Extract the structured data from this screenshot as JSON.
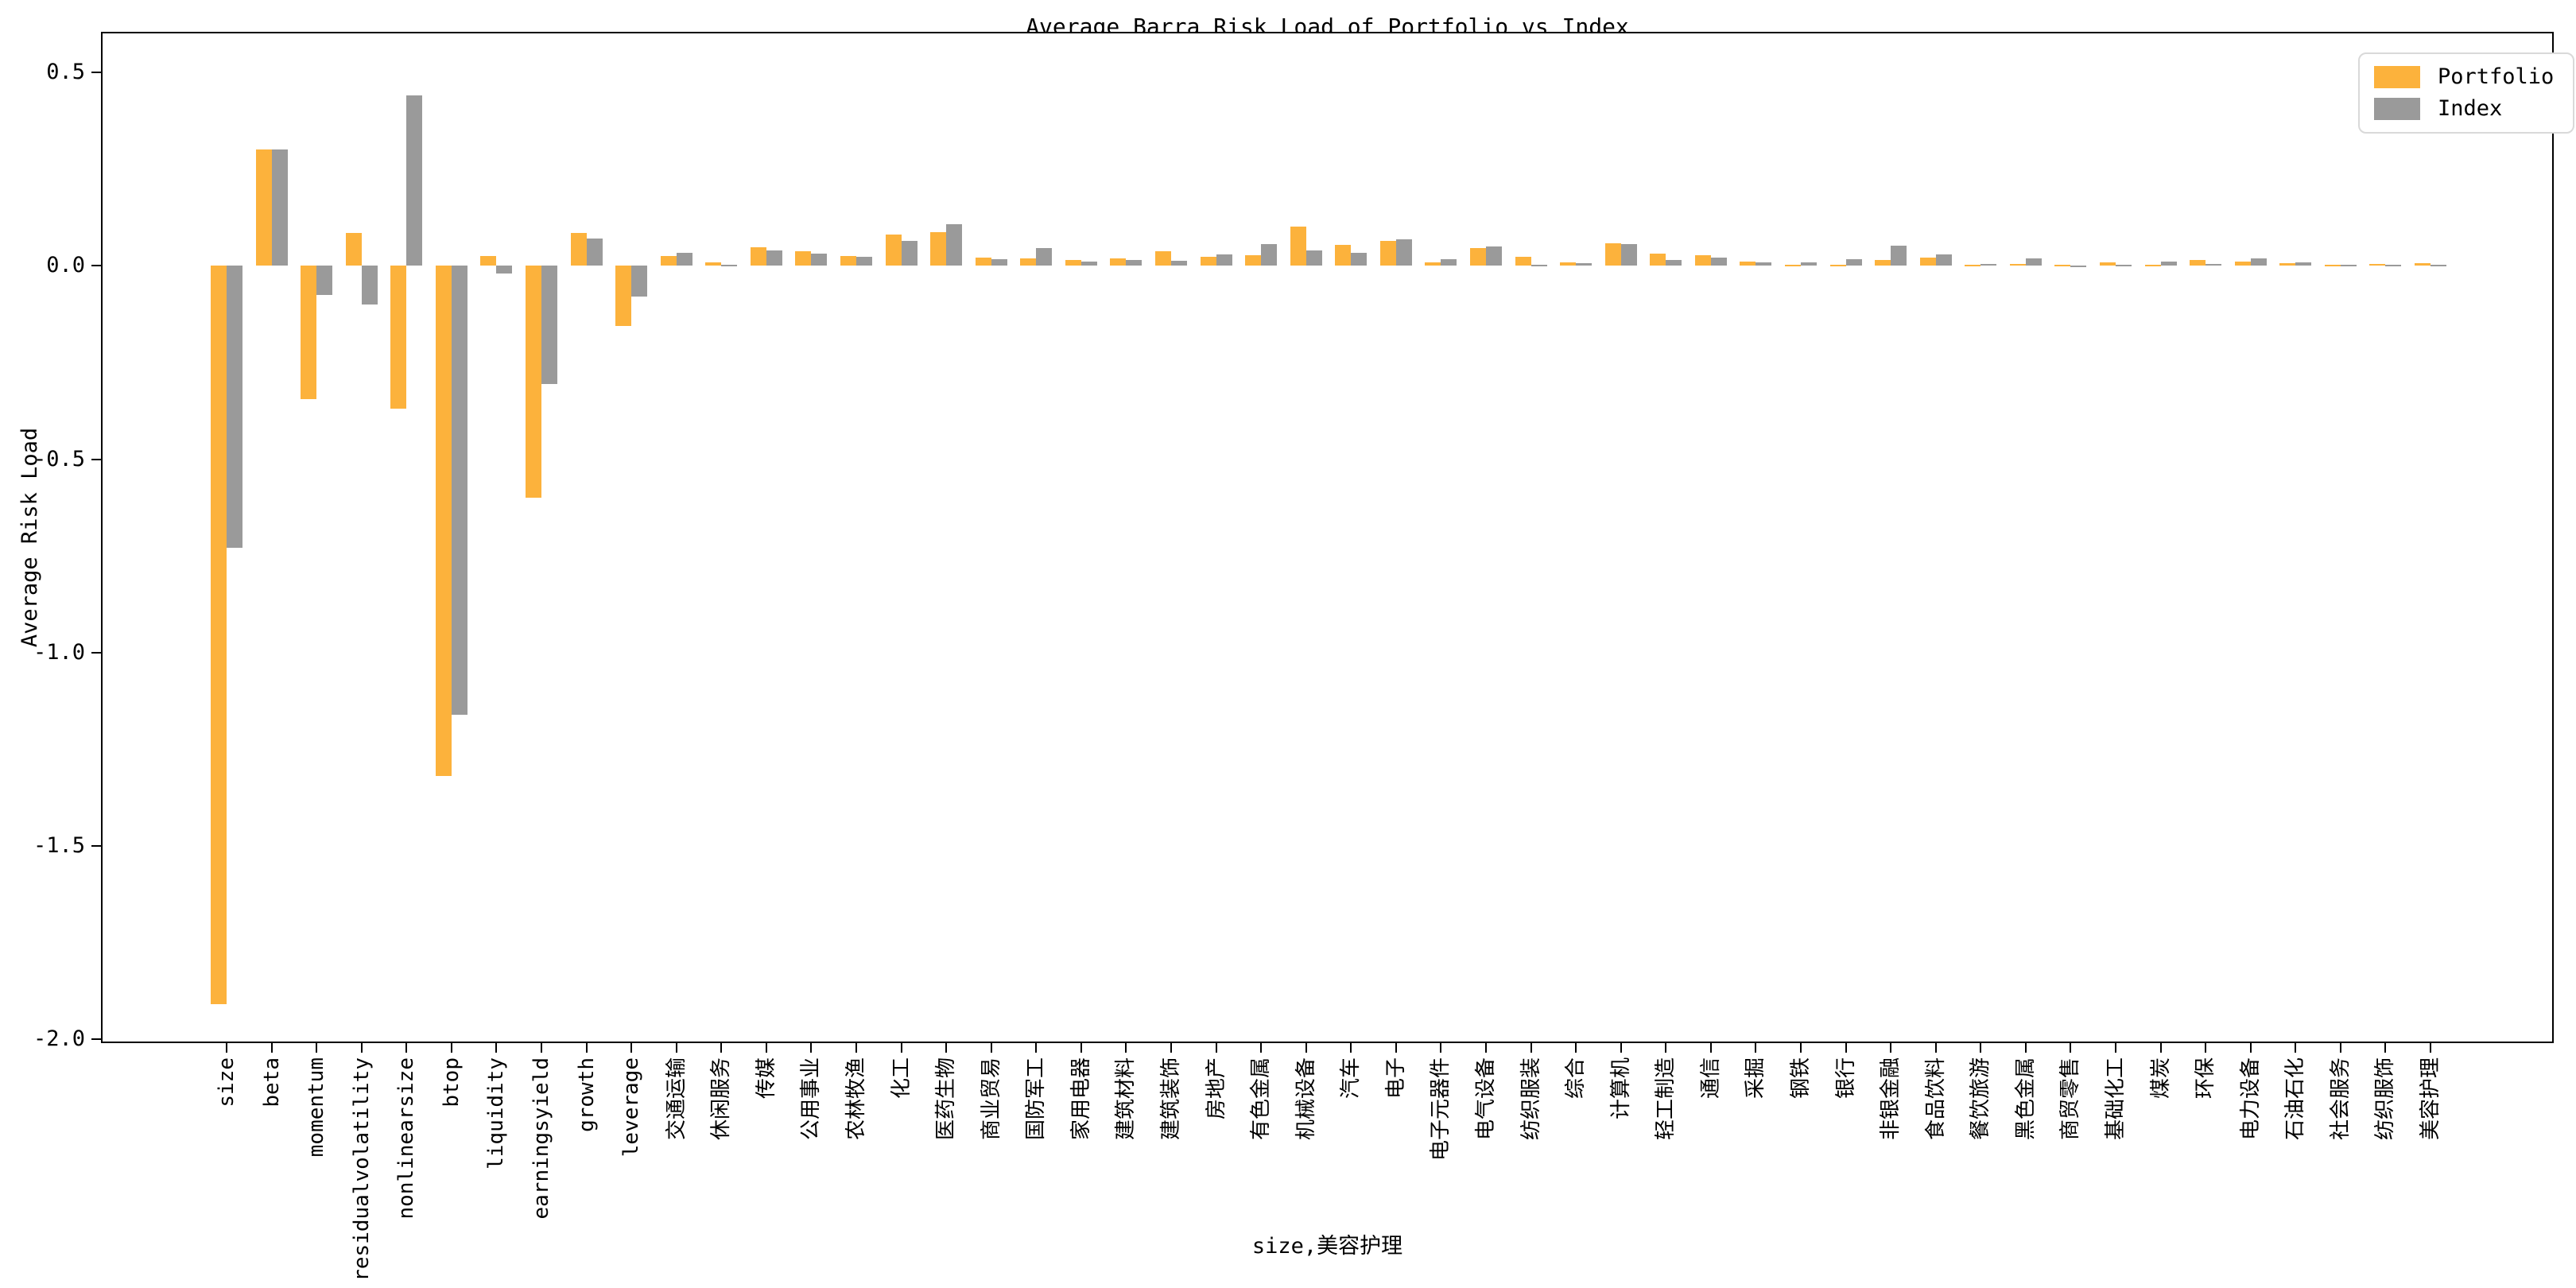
{
  "title": "Average Barra Risk Load of Portfolio vs Index",
  "xlabel": "size,美容护理",
  "ylabel": "Average Risk Load",
  "legend": {
    "items": [
      {
        "label": "Portfolio",
        "color": "#FCB23C"
      },
      {
        "label": "Index",
        "color": "#9A9A9A"
      }
    ]
  },
  "chart_data": {
    "type": "bar",
    "title": "Average Barra Risk Load of Portfolio vs Index",
    "xlabel": "size,美容护理",
    "ylabel": "Average Risk Load",
    "ylim": [
      -2.03,
      0.61
    ],
    "yticks": [
      0.5,
      0.0,
      -0.5,
      -1.0,
      -1.5,
      -2.0
    ],
    "grid": false,
    "legend_position": "upper right",
    "categories": [
      "size",
      "beta",
      "momentum",
      "residualvolatility",
      "nonlinearsize",
      "btop",
      "liquidity",
      "earningsyield",
      "growth",
      "leverage",
      "交通运输",
      "休闲服务",
      "传媒",
      "公用事业",
      "农林牧渔",
      "化工",
      "医药生物",
      "商业贸易",
      "国防军工",
      "家用电器",
      "建筑材料",
      "建筑装饰",
      "房地产",
      "有色金属",
      "机械设备",
      "汽车",
      "电子",
      "电子元器件",
      "电气设备",
      "纺织服装",
      "综合",
      "计算机",
      "轻工制造",
      "通信",
      "采掘",
      "钢铁",
      "银行",
      "非银金融",
      "食品饮料",
      "餐饮旅游",
      "黑色金属",
      "商贸零售",
      "基础化工",
      "煤炭",
      "环保",
      "电力设备",
      "石油石化",
      "社会服务",
      "纺织服饰",
      "美容护理"
    ],
    "series": [
      {
        "name": "Portfolio",
        "color": "#FCB23C",
        "values": [
          -1.91,
          0.3,
          -0.345,
          0.085,
          -0.37,
          -1.32,
          0.025,
          -0.6,
          0.085,
          -0.155,
          0.026,
          0.008,
          0.047,
          0.038,
          0.026,
          0.081,
          0.086,
          0.021,
          0.02,
          0.016,
          0.019,
          0.038,
          0.023,
          0.028,
          0.102,
          0.054,
          0.064,
          0.008,
          0.045,
          0.024,
          0.009,
          0.058,
          0.031,
          0.027,
          0.01,
          0.003,
          0.003,
          0.015,
          0.021,
          0.002,
          0.004,
          0.003,
          0.008,
          0.003,
          0.016,
          0.011,
          0.007,
          0.003,
          0.004,
          0.006
        ]
      },
      {
        "name": "Index",
        "color": "#9A9A9A",
        "values": [
          -0.73,
          0.3,
          -0.075,
          -0.1,
          0.44,
          -1.16,
          -0.02,
          -0.305,
          0.07,
          -0.08,
          0.033,
          0.003,
          0.04,
          0.032,
          0.024,
          0.065,
          0.108,
          0.017,
          0.045,
          0.01,
          0.016,
          0.012,
          0.029,
          0.056,
          0.04,
          0.033,
          0.069,
          0.017,
          0.05,
          0.003,
          0.006,
          0.057,
          0.014,
          0.021,
          0.008,
          0.009,
          0.017,
          0.053,
          0.03,
          0.004,
          0.02,
          0.001,
          0.003,
          0.011,
          0.005,
          0.019,
          0.009,
          0.003,
          0.003,
          0.003
        ]
      }
    ]
  }
}
